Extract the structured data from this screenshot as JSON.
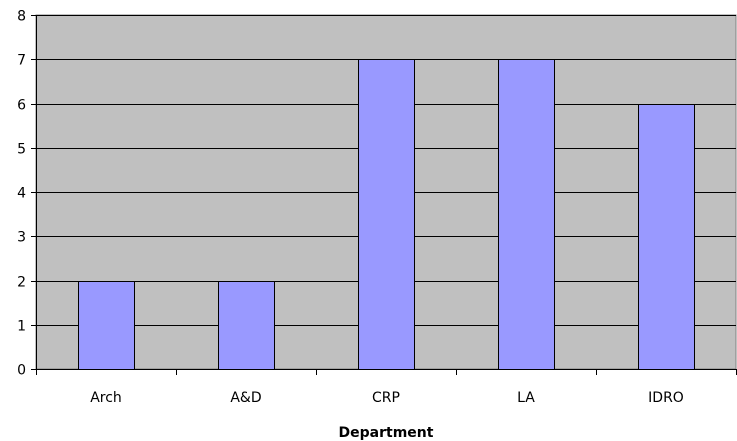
{
  "chart_data": {
    "type": "bar",
    "title": "",
    "xlabel": "Department",
    "ylabel": "",
    "categories": [
      "Arch",
      "A&D",
      "CRP",
      "LA",
      "IDRO"
    ],
    "values": [
      2,
      2,
      7,
      7,
      6
    ],
    "ylim": [
      0,
      8
    ],
    "yticks": [
      "0",
      "1",
      "2",
      "3",
      "4",
      "5",
      "6",
      "7",
      "8"
    ],
    "grid": true,
    "legend": "none",
    "colors": {
      "bar": "#9999ff",
      "bar_border": "#000000",
      "plot_background": "#c0c0c0",
      "gridline": "#000000"
    }
  }
}
